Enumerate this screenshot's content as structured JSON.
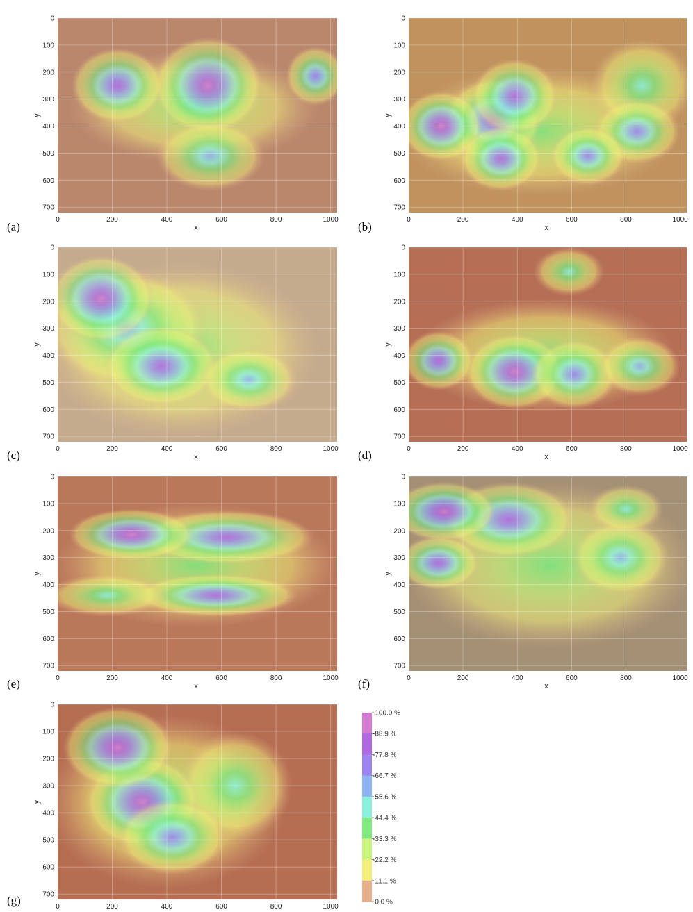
{
  "figure": {
    "colorbar": {
      "stops": [
        "#e6b08c",
        "#f2f07a",
        "#c8f27a",
        "#7fe87f",
        "#8cf0dc",
        "#8fb4f2",
        "#9b84f0",
        "#b06ae0",
        "#d27ad2"
      ],
      "labels": [
        "-100.0 %",
        "-88.9 %",
        "-77.8 %",
        "-66.7 %",
        "-55.6 %",
        "-44.4 %",
        "-33.3 %",
        "-22.2 %",
        "-11.1 %",
        "-0.0 %"
      ]
    }
  },
  "chart_data": [
    {
      "type": "heatmap",
      "panel_label": "(a)",
      "xlabel": "x",
      "ylabel": "y",
      "xlim": [
        0,
        1024
      ],
      "ylim": [
        0,
        720
      ],
      "x_ticks": [
        0,
        200,
        400,
        600,
        800,
        1000
      ],
      "y_ticks": [
        0,
        100,
        200,
        300,
        400,
        500,
        600,
        700
      ],
      "background": "#b9876c",
      "hotspots": [
        {
          "x": 220,
          "y": 250,
          "rx": 170,
          "ry": 140,
          "peak": 0.92
        },
        {
          "x": 550,
          "y": 250,
          "rx": 200,
          "ry": 180,
          "peak": 1.0
        },
        {
          "x": 945,
          "y": 215,
          "rx": 110,
          "ry": 110,
          "peak": 0.78
        },
        {
          "x": 560,
          "y": 510,
          "rx": 200,
          "ry": 130,
          "peak": 0.62
        },
        {
          "x": 500,
          "y": 330,
          "rx": 460,
          "ry": 210,
          "peak": 0.4
        }
      ]
    },
    {
      "type": "heatmap",
      "panel_label": "(b)",
      "xlabel": "x",
      "ylabel": "y",
      "xlim": [
        0,
        1024
      ],
      "ylim": [
        0,
        720
      ],
      "x_ticks": [
        0,
        200,
        400,
        600,
        800,
        1000
      ],
      "y_ticks": [
        0,
        100,
        200,
        300,
        400,
        500,
        600,
        700
      ],
      "background": "#c0935e",
      "hotspots": [
        {
          "x": 120,
          "y": 400,
          "rx": 150,
          "ry": 130,
          "peak": 0.95
        },
        {
          "x": 310,
          "y": 380,
          "rx": 180,
          "ry": 160,
          "peak": 0.92
        },
        {
          "x": 390,
          "y": 290,
          "rx": 160,
          "ry": 140,
          "peak": 0.88
        },
        {
          "x": 340,
          "y": 520,
          "rx": 150,
          "ry": 120,
          "peak": 0.82
        },
        {
          "x": 660,
          "y": 510,
          "rx": 140,
          "ry": 110,
          "peak": 0.8
        },
        {
          "x": 840,
          "y": 420,
          "rx": 160,
          "ry": 120,
          "peak": 0.76
        },
        {
          "x": 860,
          "y": 250,
          "rx": 190,
          "ry": 170,
          "peak": 0.45
        },
        {
          "x": 480,
          "y": 420,
          "rx": 520,
          "ry": 240,
          "peak": 0.38
        }
      ]
    },
    {
      "type": "heatmap",
      "panel_label": "(c)",
      "xlabel": "x",
      "ylabel": "y",
      "xlim": [
        0,
        1024
      ],
      "ylim": [
        0,
        720
      ],
      "x_ticks": [
        0,
        200,
        400,
        600,
        800,
        1000
      ],
      "y_ticks": [
        0,
        100,
        200,
        300,
        400,
        500,
        600,
        700
      ],
      "background": "#c4ab8e",
      "hotspots": [
        {
          "x": 160,
          "y": 190,
          "rx": 190,
          "ry": 160,
          "peak": 0.95
        },
        {
          "x": 380,
          "y": 440,
          "rx": 210,
          "ry": 150,
          "peak": 0.9
        },
        {
          "x": 700,
          "y": 490,
          "rx": 180,
          "ry": 120,
          "peak": 0.62
        },
        {
          "x": 250,
          "y": 300,
          "rx": 300,
          "ry": 220,
          "peak": 0.6
        },
        {
          "x": 450,
          "y": 380,
          "rx": 520,
          "ry": 330,
          "peak": 0.36
        }
      ]
    },
    {
      "type": "heatmap",
      "panel_label": "(d)",
      "xlabel": "x",
      "ylabel": "y",
      "xlim": [
        0,
        1024
      ],
      "ylim": [
        0,
        720
      ],
      "x_ticks": [
        0,
        200,
        400,
        600,
        800,
        1000
      ],
      "y_ticks": [
        0,
        100,
        200,
        300,
        400,
        500,
        600,
        700
      ],
      "background": "#b56f55",
      "hotspots": [
        {
          "x": 390,
          "y": 460,
          "rx": 180,
          "ry": 140,
          "peak": 1.0
        },
        {
          "x": 110,
          "y": 420,
          "rx": 130,
          "ry": 110,
          "peak": 0.85
        },
        {
          "x": 610,
          "y": 470,
          "rx": 160,
          "ry": 130,
          "peak": 0.75
        },
        {
          "x": 850,
          "y": 440,
          "rx": 150,
          "ry": 110,
          "peak": 0.62
        },
        {
          "x": 590,
          "y": 90,
          "rx": 130,
          "ry": 90,
          "peak": 0.46
        },
        {
          "x": 500,
          "y": 400,
          "rx": 480,
          "ry": 210,
          "peak": 0.38
        }
      ]
    },
    {
      "type": "heatmap",
      "panel_label": "(e)",
      "xlabel": "x",
      "ylabel": "y",
      "xlim": [
        0,
        1024
      ],
      "ylim": [
        0,
        720
      ],
      "x_ticks": [
        0,
        200,
        400,
        600,
        800,
        1000
      ],
      "y_ticks": [
        0,
        100,
        200,
        300,
        400,
        500,
        600,
        700
      ],
      "background": "#b9785a",
      "hotspots": [
        {
          "x": 270,
          "y": 215,
          "rx": 230,
          "ry": 95,
          "peak": 1.0
        },
        {
          "x": 620,
          "y": 225,
          "rx": 320,
          "ry": 100,
          "peak": 0.82
        },
        {
          "x": 580,
          "y": 440,
          "rx": 300,
          "ry": 80,
          "peak": 0.85
        },
        {
          "x": 180,
          "y": 440,
          "rx": 220,
          "ry": 80,
          "peak": 0.55
        },
        {
          "x": 510,
          "y": 330,
          "rx": 520,
          "ry": 230,
          "peak": 0.4
        }
      ]
    },
    {
      "type": "heatmap",
      "panel_label": "(f)",
      "xlabel": "x",
      "ylabel": "y",
      "xlim": [
        0,
        1024
      ],
      "ylim": [
        0,
        720
      ],
      "x_ticks": [
        0,
        200,
        400,
        600,
        800,
        1000
      ],
      "y_ticks": [
        0,
        100,
        200,
        300,
        400,
        500,
        600,
        700
      ],
      "background": "#a49074",
      "hotspots": [
        {
          "x": 130,
          "y": 130,
          "rx": 190,
          "ry": 110,
          "peak": 0.95
        },
        {
          "x": 370,
          "y": 160,
          "rx": 240,
          "ry": 140,
          "peak": 0.9
        },
        {
          "x": 110,
          "y": 320,
          "rx": 150,
          "ry": 100,
          "peak": 0.88
        },
        {
          "x": 780,
          "y": 300,
          "rx": 180,
          "ry": 140,
          "peak": 0.66
        },
        {
          "x": 800,
          "y": 120,
          "rx": 140,
          "ry": 90,
          "peak": 0.55
        },
        {
          "x": 520,
          "y": 330,
          "rx": 540,
          "ry": 310,
          "peak": 0.4
        }
      ]
    },
    {
      "type": "heatmap",
      "panel_label": "(g)",
      "xlabel": "x",
      "ylabel": "y",
      "xlim": [
        0,
        1024
      ],
      "ylim": [
        0,
        720
      ],
      "x_ticks": [
        0,
        200,
        400,
        600,
        800,
        1000
      ],
      "y_ticks": [
        0,
        100,
        200,
        300,
        400,
        500,
        600,
        700
      ],
      "background": "#b56e52",
      "hotspots": [
        {
          "x": 220,
          "y": 160,
          "rx": 200,
          "ry": 150,
          "peak": 0.95
        },
        {
          "x": 310,
          "y": 360,
          "rx": 210,
          "ry": 170,
          "peak": 0.95
        },
        {
          "x": 420,
          "y": 490,
          "rx": 200,
          "ry": 140,
          "peak": 0.8
        },
        {
          "x": 650,
          "y": 300,
          "rx": 210,
          "ry": 200,
          "peak": 0.5
        },
        {
          "x": 400,
          "y": 360,
          "rx": 440,
          "ry": 320,
          "peak": 0.4
        }
      ]
    }
  ]
}
